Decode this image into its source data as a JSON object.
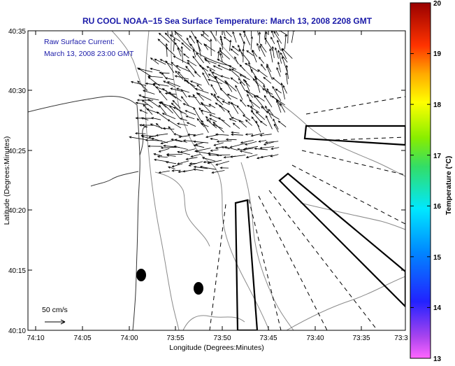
{
  "title": "RU COOL  NOAA−15  Sea Surface Temperature:  March 13, 2008 2208 GMT",
  "annotation": {
    "line1": "Raw Surface Current:",
    "line2": "March 13, 2008 23:00 GMT"
  },
  "scale_label": "50 cm/s",
  "axes": {
    "xlabel": "Longitude (Degrees:Minutes)",
    "ylabel": "Latitude (Degrees:Minutes)",
    "xticks": [
      "74:10",
      "74:05",
      "74:00",
      "73:55",
      "73:50",
      "73:45",
      "73:40",
      "73:35",
      "73:3"
    ],
    "yticks": [
      "40:35",
      "40:30",
      "40:25",
      "40:20",
      "40:15",
      "40:10"
    ]
  },
  "colorbar": {
    "label": "Temperature (°C)",
    "ticks": [
      "20",
      "19",
      "18",
      "17",
      "16",
      "15",
      "14",
      "13"
    ],
    "min": 13,
    "max": 20
  },
  "colors": {
    "title": "#1a1aa8",
    "annotation": "#1a1aa8",
    "contour": "#8a8a8a",
    "land_outline": "#333333",
    "arrows": "#000000"
  }
}
